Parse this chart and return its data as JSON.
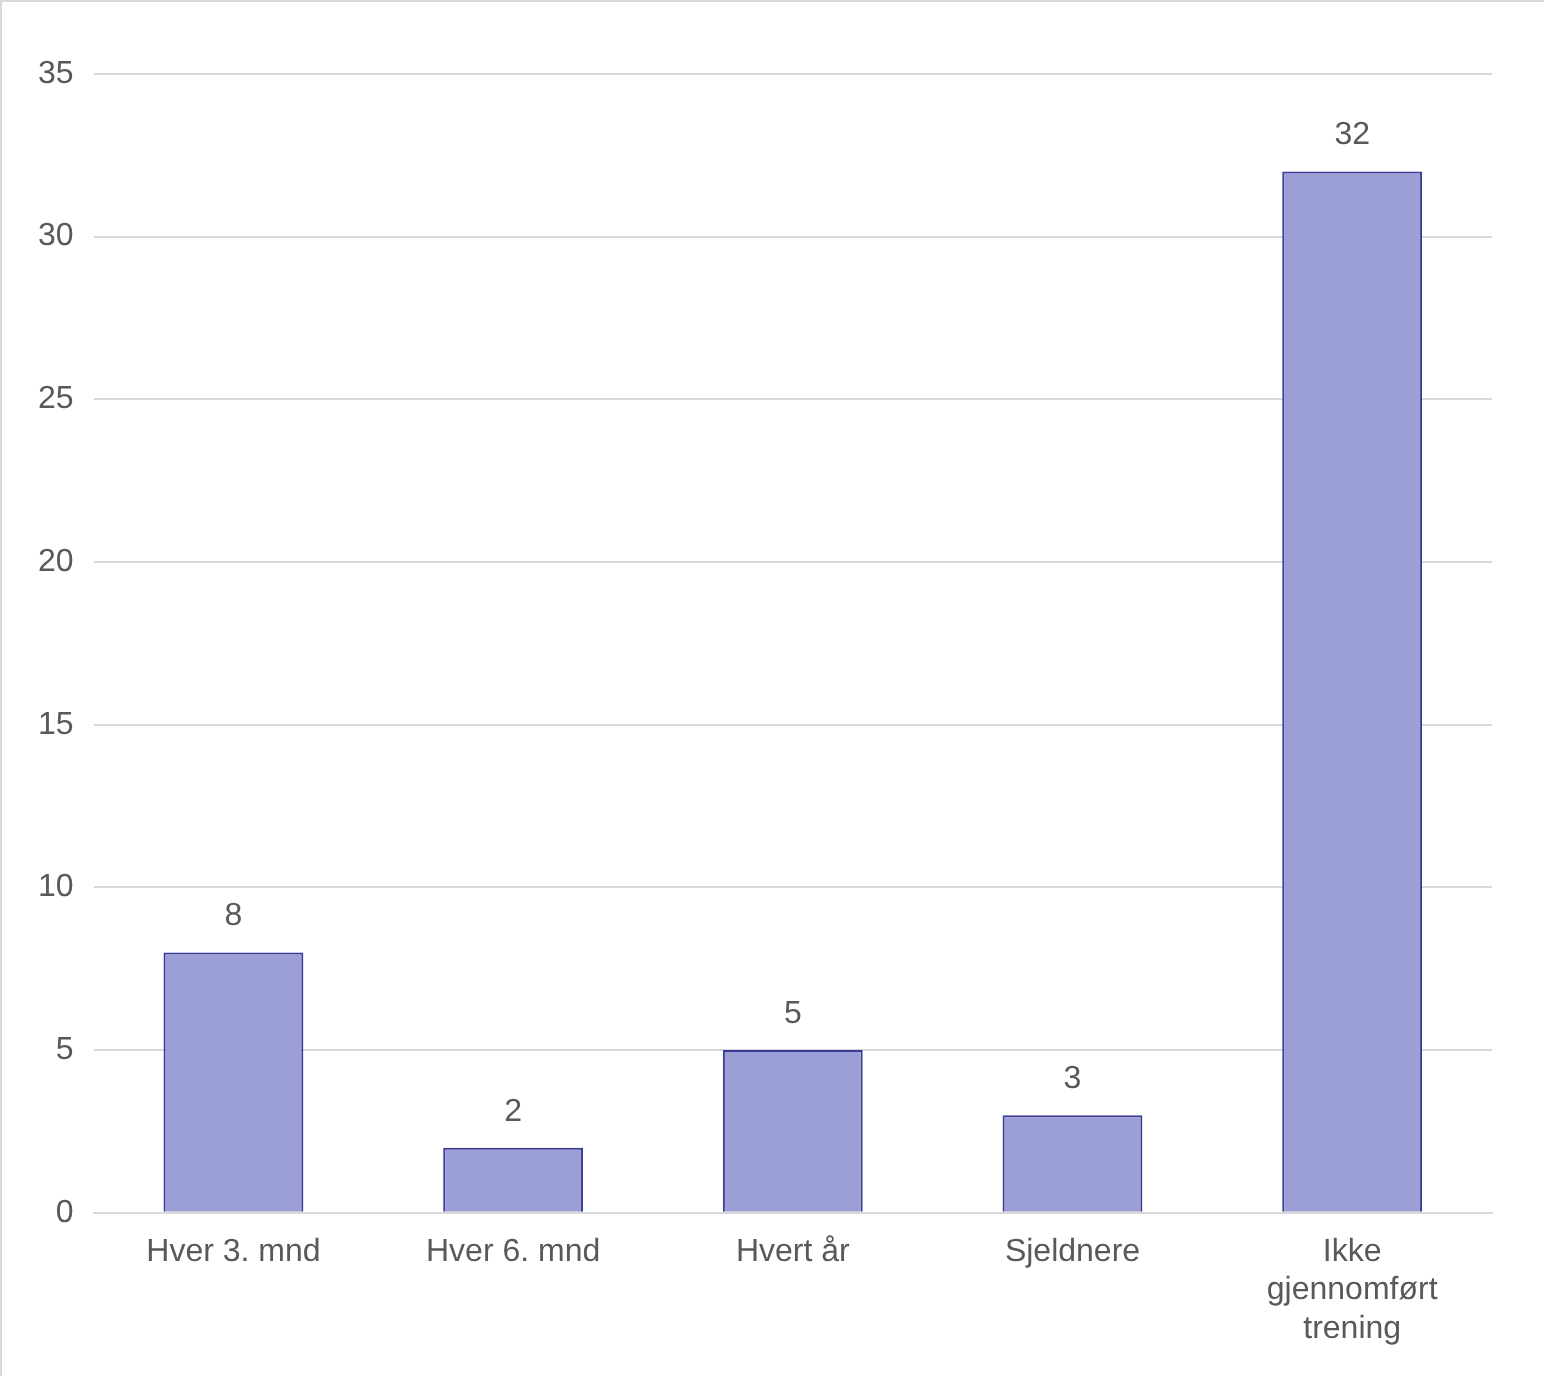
{
  "chart_data": {
    "type": "bar",
    "categories": [
      "Hver 3. mnd",
      "Hver 6. mnd",
      "Hvert år",
      "Sjeldnere",
      "Ikke gjennomført trening"
    ],
    "values": [
      8,
      2,
      5,
      3,
      32
    ],
    "color": "#9c9ed6",
    "ylim": [
      0,
      35
    ],
    "yticks": [
      0,
      5,
      10,
      15,
      20,
      25,
      30,
      35
    ],
    "grid": "y",
    "legend": false,
    "data_labels": true
  }
}
